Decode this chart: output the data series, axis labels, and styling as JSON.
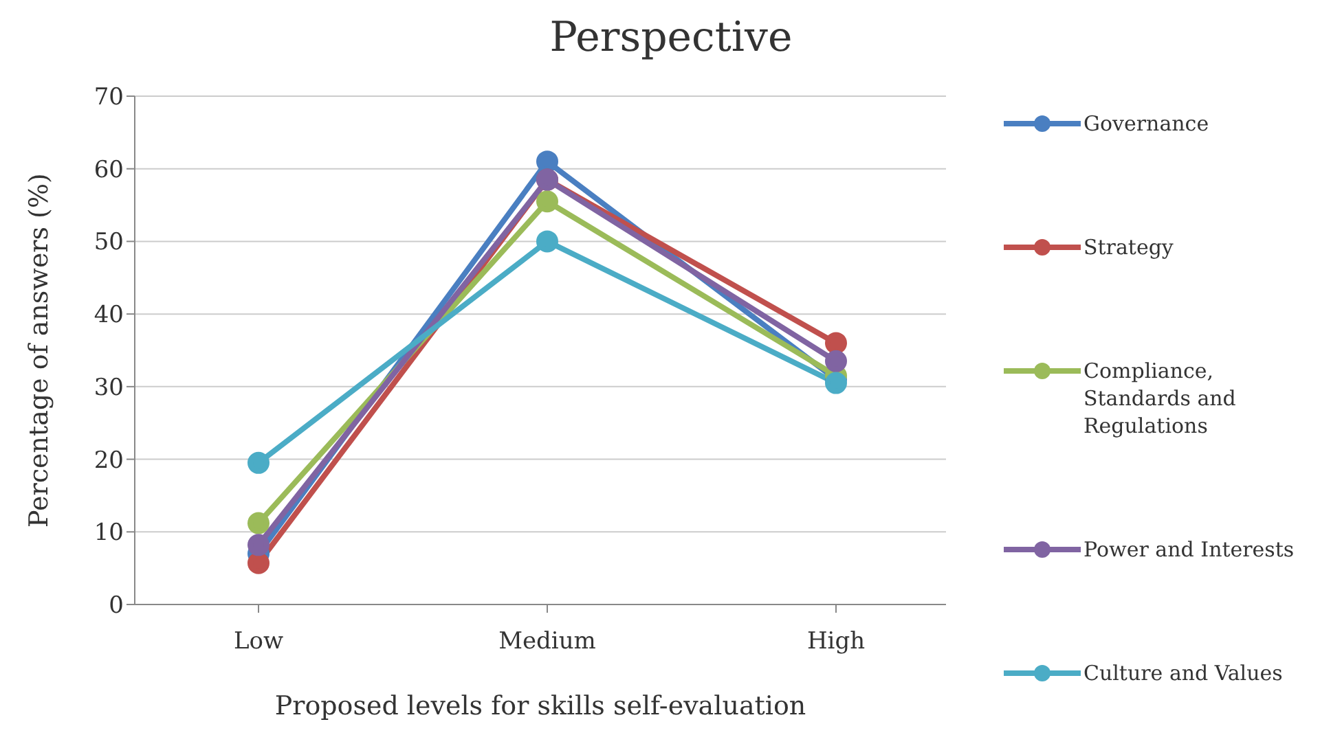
{
  "chart_data": {
    "type": "line",
    "title": "Perspective",
    "xlabel": "Proposed levels for skills self-evaluation",
    "ylabel": "Percentage of answers (%)",
    "categories": [
      "Low",
      "Medium",
      "High"
    ],
    "series": [
      {
        "name": "Governance",
        "color": "#4a7fc1",
        "values": [
          7,
          61,
          31
        ]
      },
      {
        "name": "Strategy",
        "color": "#c0504d",
        "values": [
          5.7,
          58.5,
          36
        ]
      },
      {
        "name": "Compliance, Standards and Regulations",
        "color": "#9bbb59",
        "values": [
          11.2,
          55.5,
          31.5
        ]
      },
      {
        "name": "Power and Interests",
        "color": "#8064a2",
        "values": [
          8.2,
          58.5,
          33.5
        ]
      },
      {
        "name": "Culture and Values",
        "color": "#4bacc6",
        "values": [
          19.5,
          50,
          30.5
        ]
      }
    ],
    "ylim": [
      0,
      70
    ],
    "yticks": [
      0,
      10,
      20,
      30,
      40,
      50,
      60,
      70
    ],
    "grid": "y",
    "legend": "right",
    "marker": "circle",
    "line_style": "solid"
  }
}
